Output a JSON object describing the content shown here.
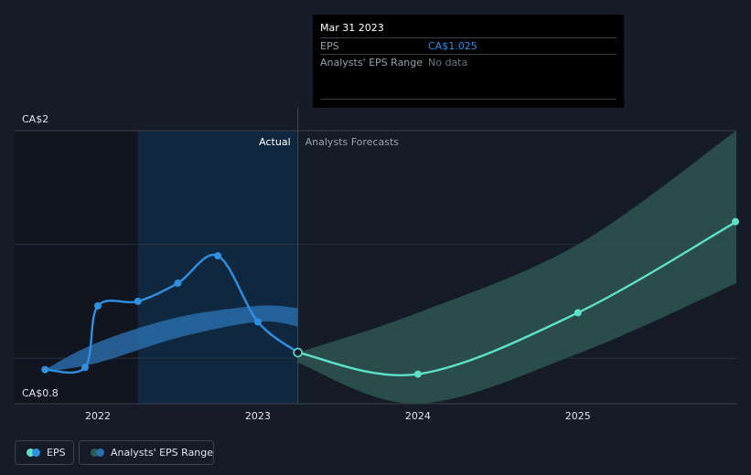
{
  "colors": {
    "background": "#151b27",
    "eps_line": "#2f8fe0",
    "forecast_line": "#5fe0c8",
    "range_actual": "#2a6fb0",
    "range_forecast": "#2f5a55",
    "grid": "#2a303c",
    "highlight": "#0f2a44",
    "tooltip_eps_value": "#2f8fe0",
    "tooltip_nodata": "#6b7280"
  },
  "tooltip": {
    "date": "Mar 31 2023",
    "eps_label": "EPS",
    "eps_value": "CA$1.025",
    "range_label": "Analysts' EPS Range",
    "range_value": "No data"
  },
  "legend": {
    "eps_label": "EPS",
    "range_label": "Analysts' EPS Range"
  },
  "chart_data": {
    "type": "line",
    "ylim": [
      0.8,
      2.0
    ],
    "xlim": [
      2021.48,
      2025.99
    ],
    "y_axis_labels": [
      "CA$2",
      "CA$0.8"
    ],
    "x_ticks": [
      "2022",
      "2023",
      "2024",
      "2025"
    ],
    "x_tick_values": [
      2022.0,
      2023.0,
      2024.0,
      2025.0
    ],
    "grid_values": [
      1.0,
      1.5,
      2.0
    ],
    "actual_label": "Actual",
    "forecast_label": "Analysts Forecasts",
    "divider_x": 2023.25,
    "highlight_start_x": 2022.25,
    "series": [
      {
        "name": "EPS",
        "kind": "actual",
        "points": [
          {
            "x": 2021.67,
            "y": 0.95
          },
          {
            "x": 2021.92,
            "y": 0.96
          },
          {
            "x": 2022.0,
            "y": 1.23
          },
          {
            "x": 2022.25,
            "y": 1.25
          },
          {
            "x": 2022.5,
            "y": 1.33
          },
          {
            "x": 2022.75,
            "y": 1.45
          },
          {
            "x": 2023.0,
            "y": 1.16
          },
          {
            "x": 2023.25,
            "y": 1.025
          }
        ]
      },
      {
        "name": "EPS Forecast",
        "kind": "forecast",
        "points": [
          {
            "x": 2023.25,
            "y": 1.025
          },
          {
            "x": 2024.0,
            "y": 0.93
          },
          {
            "x": 2025.0,
            "y": 1.2
          },
          {
            "x": 2025.99,
            "y": 1.6
          }
        ]
      }
    ],
    "range_actual": {
      "upper": [
        {
          "x": 2021.67,
          "y": 0.95
        },
        {
          "x": 2022.0,
          "y": 1.07
        },
        {
          "x": 2022.5,
          "y": 1.18
        },
        {
          "x": 2023.0,
          "y": 1.23
        },
        {
          "x": 2023.25,
          "y": 1.22
        }
      ],
      "lower": [
        {
          "x": 2023.25,
          "y": 1.14
        },
        {
          "x": 2023.0,
          "y": 1.16
        },
        {
          "x": 2022.5,
          "y": 1.09
        },
        {
          "x": 2022.0,
          "y": 0.98
        },
        {
          "x": 2021.67,
          "y": 0.94
        }
      ]
    },
    "range_forecast": {
      "upper": [
        {
          "x": 2023.25,
          "y": 1.025
        },
        {
          "x": 2024.0,
          "y": 1.2
        },
        {
          "x": 2025.0,
          "y": 1.5
        },
        {
          "x": 2025.99,
          "y": 2.0
        }
      ],
      "lower": [
        {
          "x": 2025.99,
          "y": 1.33
        },
        {
          "x": 2025.0,
          "y": 1.02
        },
        {
          "x": 2024.0,
          "y": 0.8
        },
        {
          "x": 2023.25,
          "y": 0.98
        }
      ]
    }
  }
}
